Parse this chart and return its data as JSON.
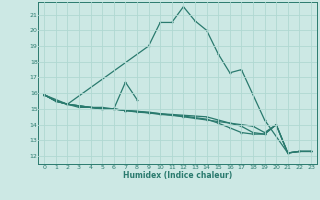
{
  "xlabel": "Humidex (Indice chaleur)",
  "bg_color": "#cce8e4",
  "grid_color": "#b0d8d2",
  "line_color": "#2a7a6e",
  "xlim": [
    -0.5,
    23.5
  ],
  "ylim": [
    11.5,
    21.8
  ],
  "yticks": [
    12,
    13,
    14,
    15,
    16,
    17,
    18,
    19,
    20,
    21
  ],
  "xticks": [
    0,
    1,
    2,
    3,
    4,
    5,
    6,
    7,
    8,
    9,
    10,
    11,
    12,
    13,
    14,
    15,
    16,
    17,
    18,
    19,
    20,
    21,
    22,
    23
  ],
  "line_main_x": [
    0,
    2,
    9,
    10,
    11,
    12,
    13,
    14,
    15,
    16,
    17,
    19,
    21,
    22,
    23
  ],
  "line_main_y": [
    15.9,
    15.3,
    19.0,
    20.5,
    20.5,
    21.5,
    20.6,
    20.0,
    18.5,
    17.3,
    17.5,
    14.3,
    12.2,
    12.3,
    12.3
  ],
  "line_spike_x": [
    0,
    1,
    2,
    3,
    4,
    5,
    6,
    7,
    8
  ],
  "line_spike_y": [
    15.9,
    15.5,
    15.3,
    15.1,
    15.1,
    15.1,
    15.0,
    16.7,
    15.6
  ],
  "line_flat1_x": [
    0,
    1,
    2,
    3,
    4,
    5,
    6,
    7,
    8,
    9,
    10,
    11,
    12,
    13,
    14,
    15,
    16,
    17,
    18,
    19,
    20,
    21,
    22,
    23
  ],
  "line_flat1_y": [
    15.9,
    15.5,
    15.3,
    15.2,
    15.1,
    15.0,
    15.0,
    14.9,
    14.8,
    14.75,
    14.7,
    14.6,
    14.5,
    14.4,
    14.3,
    14.2,
    14.1,
    14.0,
    13.9,
    13.5,
    14.0,
    12.2,
    12.3,
    12.3
  ],
  "line_flat2_x": [
    0,
    1,
    2,
    3,
    4,
    5,
    6,
    7,
    8,
    9,
    10,
    11,
    12,
    13,
    14,
    15,
    16,
    17,
    18,
    19,
    20,
    21,
    22,
    23
  ],
  "line_flat2_y": [
    15.9,
    15.5,
    15.3,
    15.2,
    15.1,
    15.0,
    15.0,
    14.9,
    14.85,
    14.8,
    14.7,
    14.65,
    14.6,
    14.55,
    14.5,
    14.3,
    14.1,
    13.9,
    13.5,
    13.4,
    14.0,
    12.2,
    12.3,
    12.3
  ],
  "line_flat3_x": [
    0,
    1,
    2,
    3,
    4,
    5,
    6,
    7,
    8,
    9,
    10,
    11,
    12,
    13,
    14,
    15,
    16,
    17,
    18,
    19,
    20,
    21,
    22,
    23
  ],
  "line_flat3_y": [
    15.9,
    15.5,
    15.3,
    15.2,
    15.1,
    15.0,
    15.0,
    14.9,
    14.85,
    14.75,
    14.65,
    14.6,
    14.55,
    14.45,
    14.35,
    14.1,
    13.8,
    13.5,
    13.4,
    13.4,
    14.0,
    12.2,
    12.3,
    12.3
  ]
}
